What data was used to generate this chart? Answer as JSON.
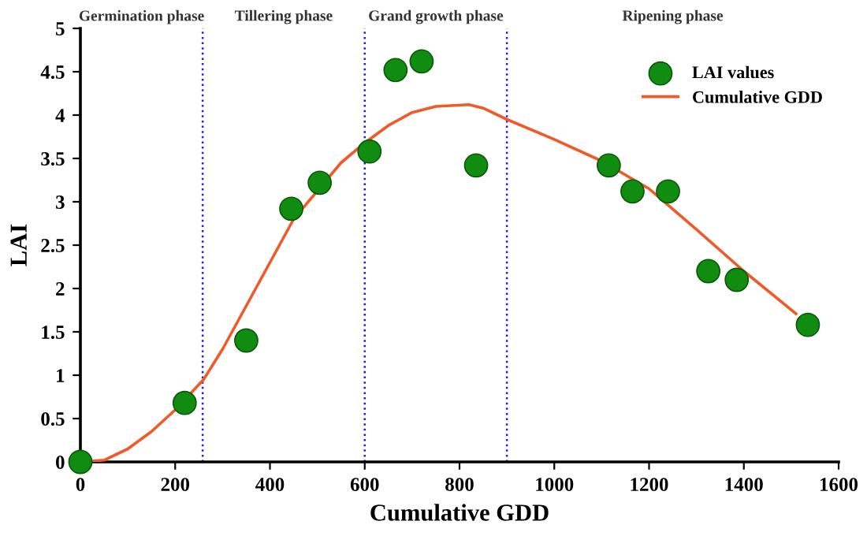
{
  "chart_data": {
    "type": "scatter",
    "xlabel": "Cumulative GDD",
    "ylabel": "LAI",
    "xlim": [
      0,
      1600
    ],
    "xticks": [
      0,
      200,
      400,
      600,
      800,
      1000,
      1200,
      1400,
      1600
    ],
    "ylim": [
      0,
      5
    ],
    "yticks": [
      0,
      0.5,
      1,
      1.5,
      2,
      2.5,
      3,
      3.5,
      4,
      4.5,
      5
    ],
    "grid": false,
    "legend": "top right",
    "series": [
      {
        "name": "LAI values",
        "color": "#108c10",
        "marker": "circle",
        "x": [
          0,
          220,
          350,
          445,
          505,
          610,
          665,
          720,
          835,
          1115,
          1165,
          1240,
          1325,
          1385,
          1535
        ],
        "values": [
          0,
          0.68,
          1.4,
          2.92,
          3.22,
          3.58,
          4.52,
          4.62,
          3.42,
          3.42,
          3.12,
          3.12,
          2.2,
          2.1,
          1.58
        ]
      },
      {
        "name": "Cumulative GDD",
        "type": "line",
        "color": "#f05a28",
        "x": [
          0,
          50,
          100,
          150,
          200,
          260,
          300,
          350,
          400,
          450,
          550,
          600,
          650,
          700,
          750,
          820,
          850,
          900,
          1000,
          1100,
          1200,
          1300,
          1400,
          1510
        ],
        "values": [
          0,
          0.02,
          0.15,
          0.35,
          0.6,
          0.95,
          1.3,
          1.8,
          2.3,
          2.8,
          3.45,
          3.68,
          3.88,
          4.03,
          4.1,
          4.12,
          4.08,
          3.95,
          3.72,
          3.47,
          3.15,
          2.68,
          2.2,
          1.71
        ]
      }
    ],
    "ref_lines": [
      {
        "axis": "x",
        "value": 258,
        "color": "#2020e0",
        "line_style": "dotted"
      },
      {
        "axis": "x",
        "value": 600,
        "color": "#2020e0",
        "line_style": "dotted"
      },
      {
        "axis": "x",
        "value": 900,
        "color": "#2020e0",
        "line_style": "dotted"
      }
    ],
    "annotations": [
      "Germination phase",
      "Tillering phase",
      "Grand growth phase",
      "Ripening phase"
    ]
  }
}
